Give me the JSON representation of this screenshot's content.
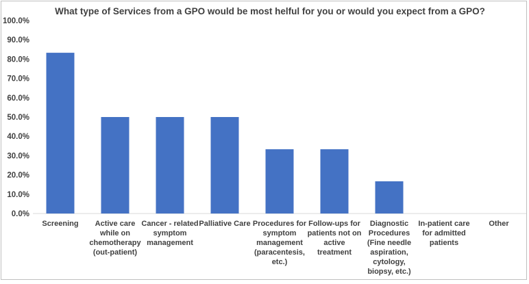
{
  "chart_data": {
    "type": "bar",
    "title": "What type of Services from a GPO would be most helful for you or would you expect from a GPO?",
    "xlabel": "",
    "ylabel": "",
    "ylim": [
      0,
      1.0
    ],
    "yticks": [
      "0.0%",
      "10.0%",
      "20.0%",
      "30.0%",
      "40.0%",
      "50.0%",
      "60.0%",
      "70.0%",
      "80.0%",
      "90.0%",
      "100.0%"
    ],
    "grid": false,
    "legend": "none",
    "bar_color": "#4472c4",
    "categories": [
      [
        "Screening"
      ],
      [
        "Active care",
        "while on",
        "chemotherapy",
        "(out-patient)"
      ],
      [
        "Cancer - related",
        "symptom",
        "management"
      ],
      [
        "Palliative Care"
      ],
      [
        "Procedures for",
        "symptom",
        "management",
        "(paracentesis,",
        "etc.)"
      ],
      [
        "Follow-ups for",
        "patients not on",
        "active",
        "treatment"
      ],
      [
        "Diagnostic",
        "Procedures",
        "(Fine needle",
        "aspiration,",
        "cytology,",
        "biopsy, etc.)"
      ],
      [
        "In-patient care",
        "for admitted",
        "patients"
      ],
      [
        "Other"
      ]
    ],
    "values": [
      0.833,
      0.5,
      0.5,
      0.5,
      0.333,
      0.333,
      0.167,
      0.0,
      0.0
    ]
  }
}
